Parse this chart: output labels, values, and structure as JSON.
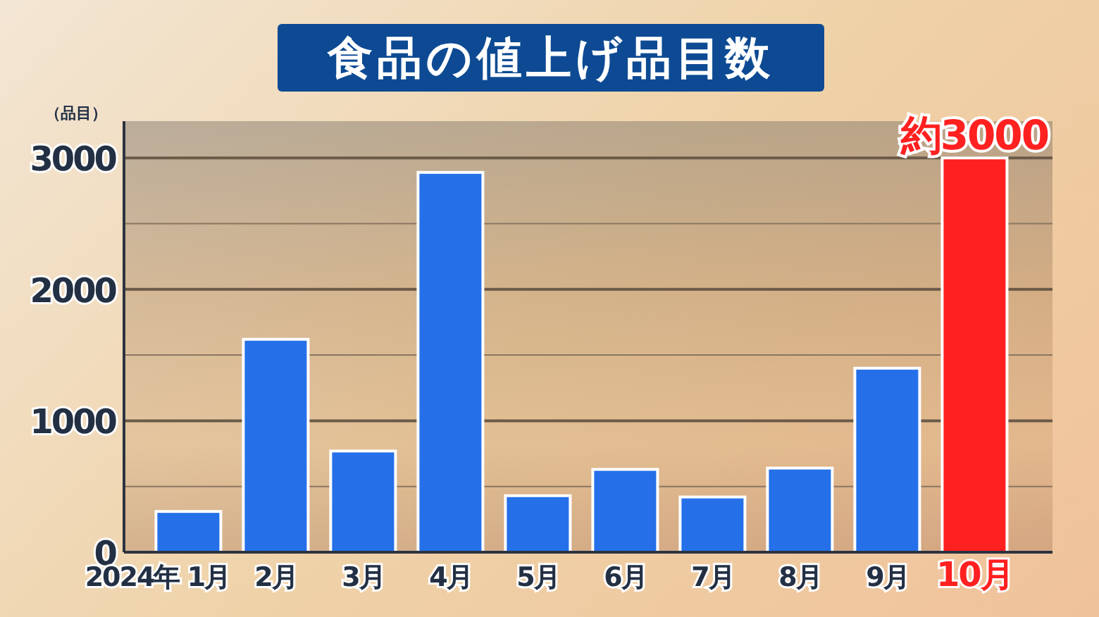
{
  "chart_data": {
    "type": "bar",
    "title": "食品の値上げ品目数",
    "ylabel": "（品目）",
    "categories": [
      "2024年 1月",
      "2月",
      "3月",
      "4月",
      "5月",
      "6月",
      "7月",
      "8月",
      "9月",
      "10月"
    ],
    "values": [
      310,
      1620,
      770,
      2890,
      430,
      630,
      420,
      640,
      1400,
      3000
    ],
    "colors": [
      "#2570e8",
      "#2570e8",
      "#2570e8",
      "#2570e8",
      "#2570e8",
      "#2570e8",
      "#2570e8",
      "#2570e8",
      "#2570e8",
      "#ff2020"
    ],
    "value_labels": [
      null,
      null,
      null,
      null,
      null,
      null,
      null,
      null,
      null,
      "約3000"
    ],
    "ylim": [
      0,
      3280
    ],
    "yticks": [
      0,
      {
        "value": 500,
        "label": null
      },
      1000,
      {
        "value": 1500,
        "label": null
      },
      2000,
      {
        "value": 2500,
        "label": null
      },
      3000
    ],
    "grid": "y"
  }
}
